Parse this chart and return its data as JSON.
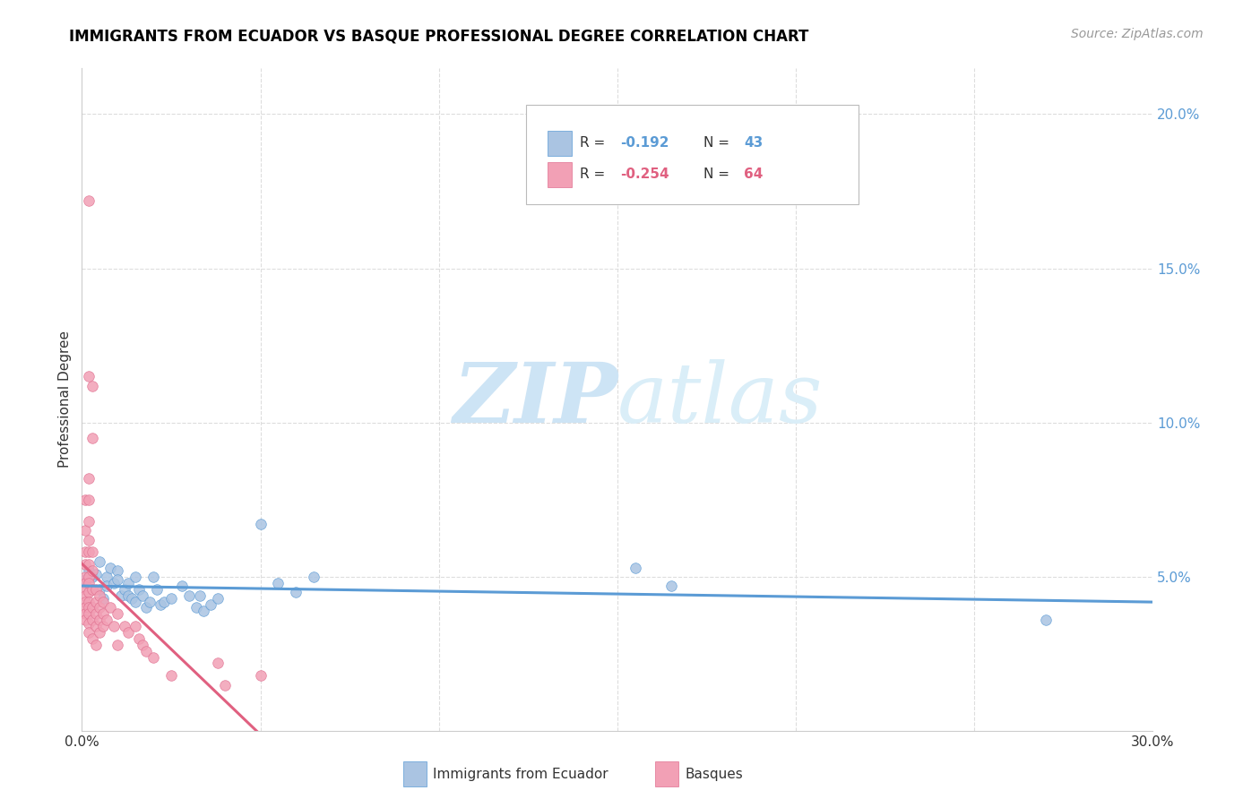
{
  "title": "IMMIGRANTS FROM ECUADOR VS BASQUE PROFESSIONAL DEGREE CORRELATION CHART",
  "source": "Source: ZipAtlas.com",
  "ylabel": "Professional Degree",
  "right_ytick_labels": [
    "",
    "5.0%",
    "10.0%",
    "15.0%",
    "20.0%"
  ],
  "right_ytick_vals": [
    0.0,
    0.05,
    0.1,
    0.15,
    0.2
  ],
  "legend_series1_label": "Immigrants from Ecuador",
  "legend_series2_label": "Basques",
  "color_blue": "#aac4e2",
  "color_pink": "#f2a0b5",
  "color_blue_dark": "#5b9bd5",
  "color_pink_dark": "#e07090",
  "color_line_blue": "#5b9bd5",
  "color_line_pink": "#e06080",
  "color_right_axis": "#5b9bd5",
  "ecuador_points": [
    [
      0.001,
      0.049
    ],
    [
      0.002,
      0.052
    ],
    [
      0.003,
      0.05
    ],
    [
      0.004,
      0.051
    ],
    [
      0.005,
      0.046
    ],
    [
      0.005,
      0.055
    ],
    [
      0.006,
      0.043
    ],
    [
      0.007,
      0.05
    ],
    [
      0.007,
      0.047
    ],
    [
      0.008,
      0.053
    ],
    [
      0.009,
      0.048
    ],
    [
      0.01,
      0.052
    ],
    [
      0.01,
      0.049
    ],
    [
      0.011,
      0.044
    ],
    [
      0.012,
      0.046
    ],
    [
      0.013,
      0.044
    ],
    [
      0.013,
      0.048
    ],
    [
      0.014,
      0.043
    ],
    [
      0.015,
      0.042
    ],
    [
      0.015,
      0.05
    ],
    [
      0.016,
      0.046
    ],
    [
      0.017,
      0.044
    ],
    [
      0.018,
      0.04
    ],
    [
      0.019,
      0.042
    ],
    [
      0.02,
      0.05
    ],
    [
      0.021,
      0.046
    ],
    [
      0.022,
      0.041
    ],
    [
      0.023,
      0.042
    ],
    [
      0.025,
      0.043
    ],
    [
      0.028,
      0.047
    ],
    [
      0.03,
      0.044
    ],
    [
      0.032,
      0.04
    ],
    [
      0.033,
      0.044
    ],
    [
      0.034,
      0.039
    ],
    [
      0.036,
      0.041
    ],
    [
      0.038,
      0.043
    ],
    [
      0.05,
      0.067
    ],
    [
      0.055,
      0.048
    ],
    [
      0.06,
      0.045
    ],
    [
      0.065,
      0.05
    ],
    [
      0.155,
      0.053
    ],
    [
      0.165,
      0.047
    ],
    [
      0.27,
      0.036
    ]
  ],
  "basque_points": [
    [
      0.001,
      0.075
    ],
    [
      0.001,
      0.065
    ],
    [
      0.001,
      0.058
    ],
    [
      0.001,
      0.054
    ],
    [
      0.001,
      0.05
    ],
    [
      0.001,
      0.048
    ],
    [
      0.001,
      0.046
    ],
    [
      0.001,
      0.044
    ],
    [
      0.001,
      0.042
    ],
    [
      0.001,
      0.04
    ],
    [
      0.001,
      0.038
    ],
    [
      0.001,
      0.036
    ],
    [
      0.002,
      0.172
    ],
    [
      0.002,
      0.115
    ],
    [
      0.002,
      0.082
    ],
    [
      0.002,
      0.075
    ],
    [
      0.002,
      0.068
    ],
    [
      0.002,
      0.062
    ],
    [
      0.002,
      0.058
    ],
    [
      0.002,
      0.054
    ],
    [
      0.002,
      0.05
    ],
    [
      0.002,
      0.048
    ],
    [
      0.002,
      0.045
    ],
    [
      0.002,
      0.042
    ],
    [
      0.002,
      0.04
    ],
    [
      0.002,
      0.038
    ],
    [
      0.002,
      0.035
    ],
    [
      0.002,
      0.032
    ],
    [
      0.003,
      0.112
    ],
    [
      0.003,
      0.095
    ],
    [
      0.003,
      0.058
    ],
    [
      0.003,
      0.052
    ],
    [
      0.003,
      0.046
    ],
    [
      0.003,
      0.04
    ],
    [
      0.003,
      0.036
    ],
    [
      0.003,
      0.03
    ],
    [
      0.004,
      0.046
    ],
    [
      0.004,
      0.042
    ],
    [
      0.004,
      0.038
    ],
    [
      0.004,
      0.034
    ],
    [
      0.004,
      0.028
    ],
    [
      0.005,
      0.044
    ],
    [
      0.005,
      0.04
    ],
    [
      0.005,
      0.036
    ],
    [
      0.005,
      0.032
    ],
    [
      0.006,
      0.042
    ],
    [
      0.006,
      0.038
    ],
    [
      0.006,
      0.034
    ],
    [
      0.007,
      0.036
    ],
    [
      0.008,
      0.04
    ],
    [
      0.009,
      0.034
    ],
    [
      0.01,
      0.038
    ],
    [
      0.01,
      0.028
    ],
    [
      0.012,
      0.034
    ],
    [
      0.013,
      0.032
    ],
    [
      0.015,
      0.034
    ],
    [
      0.016,
      0.03
    ],
    [
      0.017,
      0.028
    ],
    [
      0.018,
      0.026
    ],
    [
      0.02,
      0.024
    ],
    [
      0.025,
      0.018
    ],
    [
      0.038,
      0.022
    ],
    [
      0.04,
      0.015
    ],
    [
      0.05,
      0.018
    ]
  ]
}
